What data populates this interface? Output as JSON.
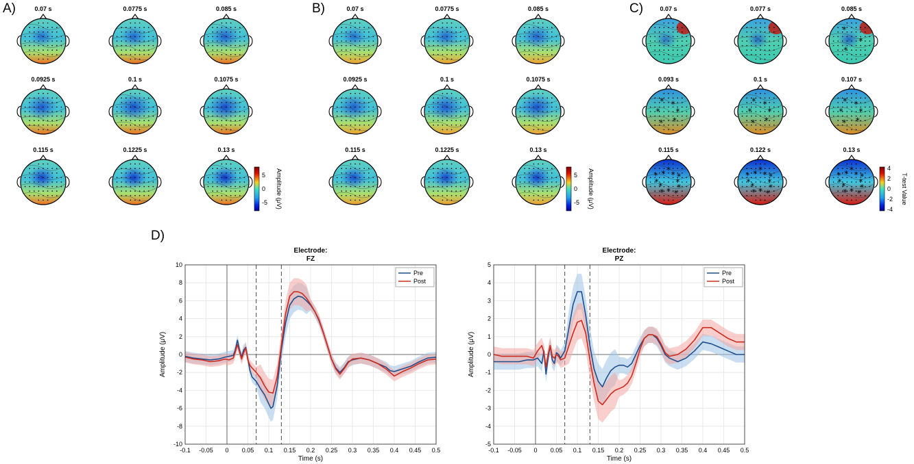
{
  "panel_labels": {
    "a": "A)",
    "b": "B)",
    "c": "C)",
    "d": "D)"
  },
  "topo_panels": [
    {
      "id": "A",
      "titles": [
        "0.07 s",
        "0.0775 s",
        "0.085 s",
        "0.0925 s",
        "0.1 s",
        "0.1075 s",
        "0.115 s",
        "0.1225 s",
        "0.13 s"
      ],
      "colorbar": {
        "label": "Amplitude (μV)",
        "ticks": [
          "5",
          "0",
          "-5"
        ]
      }
    },
    {
      "id": "B",
      "titles": [
        "0.07 s",
        "0.0775 s",
        "0.085 s",
        "0.0925 s",
        "0.1 s",
        "0.1075 s",
        "0.115 s",
        "0.1225 s",
        "0.13 s"
      ],
      "colorbar": {
        "label": "Amplitude (μV)",
        "ticks": [
          "5",
          "0",
          "-5"
        ]
      }
    },
    {
      "id": "C",
      "titles": [
        "0.07 s",
        "0.077 s",
        "0.085 s",
        "0.093 s",
        "0.1 s",
        "0.107 s",
        "0.115 s",
        "0.122 s",
        "0.13 s"
      ],
      "colorbar": {
        "label": "T-test Value",
        "ticks": [
          "4",
          "2",
          "0",
          "-2",
          "-4"
        ]
      }
    }
  ],
  "chart_data": [
    {
      "type": "line",
      "title": "Electrode:",
      "subtitle": "FZ",
      "xlabel": "Time (s)",
      "ylabel": "Amplitude (μV)",
      "xlim": [
        -0.1,
        0.5
      ],
      "ylim": [
        -10,
        10
      ],
      "xticks": [
        "-0.1",
        "-0.05",
        "0",
        "0.05",
        "0.1",
        "0.15",
        "0.2",
        "0.25",
        "0.3",
        "0.35",
        "0.4",
        "0.45",
        "0.5"
      ],
      "yticks": [
        "10",
        "8",
        "6",
        "4",
        "2",
        "0",
        "-2",
        "-4",
        "-6",
        "-8",
        "-10"
      ],
      "grid": true,
      "legend": "top-right",
      "vlines": [
        0.07,
        0.13
      ],
      "series": [
        {
          "name": "Pre",
          "color": "#1f4e8c",
          "band_color": "#9cc3e4",
          "x": [
            -0.1,
            -0.08,
            -0.06,
            -0.04,
            -0.02,
            -0.005,
            0.005,
            0.015,
            0.02,
            0.025,
            0.03,
            0.035,
            0.04,
            0.045,
            0.05,
            0.055,
            0.06,
            0.07,
            0.08,
            0.09,
            0.1,
            0.105,
            0.11,
            0.12,
            0.13,
            0.14,
            0.15,
            0.16,
            0.17,
            0.18,
            0.19,
            0.2,
            0.21,
            0.22,
            0.23,
            0.24,
            0.25,
            0.26,
            0.27,
            0.28,
            0.29,
            0.3,
            0.32,
            0.34,
            0.36,
            0.38,
            0.39,
            0.4,
            0.42,
            0.44,
            0.46,
            0.48,
            0.5
          ],
          "y": [
            -0.2,
            -0.4,
            -0.5,
            -0.6,
            -0.5,
            -0.3,
            -0.2,
            -0.1,
            0.5,
            1.6,
            0.5,
            -0.3,
            0.5,
            0.8,
            -0.5,
            -1.8,
            -2.5,
            -3.0,
            -3.8,
            -4.5,
            -5.5,
            -6.0,
            -5.8,
            -3.5,
            0.5,
            3.5,
            5.5,
            6.2,
            6.5,
            6.4,
            6.0,
            5.5,
            4.8,
            3.8,
            2.5,
            1.0,
            -0.5,
            -1.5,
            -2.0,
            -1.5,
            -0.8,
            -0.6,
            -0.4,
            -0.6,
            -1.0,
            -1.4,
            -1.8,
            -1.9,
            -1.6,
            -1.3,
            -0.8,
            -0.4,
            -0.3
          ]
        },
        {
          "name": "Post",
          "color": "#cc2b1d",
          "band_color": "#f2a7a3",
          "x": [
            -0.1,
            -0.08,
            -0.06,
            -0.04,
            -0.02,
            -0.005,
            0.005,
            0.015,
            0.02,
            0.025,
            0.03,
            0.035,
            0.04,
            0.045,
            0.05,
            0.055,
            0.06,
            0.07,
            0.08,
            0.09,
            0.1,
            0.11,
            0.12,
            0.13,
            0.14,
            0.15,
            0.16,
            0.17,
            0.18,
            0.19,
            0.2,
            0.21,
            0.22,
            0.23,
            0.24,
            0.25,
            0.26,
            0.27,
            0.28,
            0.29,
            0.3,
            0.32,
            0.34,
            0.36,
            0.38,
            0.39,
            0.4,
            0.42,
            0.44,
            0.46,
            0.48,
            0.5
          ],
          "y": [
            -0.3,
            -0.5,
            -0.6,
            -0.8,
            -0.7,
            -0.5,
            -0.6,
            -0.4,
            0.3,
            1.1,
            0.3,
            -0.5,
            0.2,
            0.7,
            -0.6,
            -1.2,
            -1.5,
            -2.0,
            -2.6,
            -3.5,
            -4.2,
            -4.3,
            -2.5,
            1.0,
            4.5,
            6.5,
            7.0,
            7.0,
            6.8,
            6.3,
            5.6,
            4.8,
            3.9,
            2.5,
            1.0,
            -0.5,
            -1.6,
            -2.2,
            -1.6,
            -0.9,
            -0.5,
            -0.4,
            -0.6,
            -1.0,
            -1.6,
            -2.0,
            -2.4,
            -1.9,
            -1.5,
            -1.0,
            -0.6,
            -0.5
          ]
        }
      ]
    },
    {
      "type": "line",
      "title": "Electrode:",
      "subtitle": "PZ",
      "xlabel": "Time (s)",
      "ylabel": "Amplitude (μV)",
      "xlim": [
        -0.1,
        0.5
      ],
      "ylim": [
        -5,
        5
      ],
      "xticks": [
        "-0.1",
        "-0.05",
        "0",
        "0.05",
        "0.1",
        "0.15",
        "0.2",
        "0.25",
        "0.3",
        "0.35",
        "0.4",
        "0.45",
        "0.5"
      ],
      "yticks": [
        "5",
        "4",
        "3",
        "2",
        "1",
        "0",
        "-1",
        "-2",
        "-3",
        "-4",
        "-5"
      ],
      "grid": true,
      "legend": "top-right",
      "vlines": [
        0.07,
        0.13
      ],
      "series": [
        {
          "name": "Pre",
          "color": "#1f4e8c",
          "band_color": "#9cc3e4",
          "x": [
            -0.1,
            -0.08,
            -0.06,
            -0.04,
            -0.02,
            -0.005,
            0.005,
            0.015,
            0.02,
            0.025,
            0.03,
            0.035,
            0.04,
            0.045,
            0.05,
            0.055,
            0.06,
            0.07,
            0.08,
            0.09,
            0.1,
            0.11,
            0.12,
            0.13,
            0.14,
            0.15,
            0.16,
            0.17,
            0.18,
            0.19,
            0.2,
            0.21,
            0.22,
            0.23,
            0.24,
            0.25,
            0.26,
            0.27,
            0.28,
            0.29,
            0.3,
            0.31,
            0.32,
            0.34,
            0.36,
            0.38,
            0.4,
            0.42,
            0.44,
            0.46,
            0.48,
            0.5
          ],
          "y": [
            -0.4,
            -0.4,
            -0.4,
            -0.4,
            -0.3,
            -0.3,
            -0.2,
            -0.5,
            0.2,
            -1.1,
            -0.2,
            0.5,
            -0.3,
            -0.5,
            0.1,
            0.0,
            -0.2,
            0.2,
            1.5,
            2.8,
            3.5,
            3.5,
            2.2,
            0.5,
            -0.8,
            -1.5,
            -1.8,
            -1.3,
            -0.9,
            -0.7,
            -0.6,
            -0.6,
            -0.7,
            -0.5,
            0.0,
            0.5,
            0.9,
            1.1,
            1.1,
            0.9,
            0.5,
            0.0,
            -0.2,
            -0.4,
            -0.2,
            0.2,
            0.7,
            0.6,
            0.4,
            0.2,
            0.0,
            0.0
          ]
        },
        {
          "name": "Post",
          "color": "#cc2b1d",
          "band_color": "#f2a7a3",
          "x": [
            -0.1,
            -0.08,
            -0.06,
            -0.04,
            -0.02,
            -0.005,
            0.005,
            0.015,
            0.02,
            0.025,
            0.03,
            0.035,
            0.04,
            0.045,
            0.05,
            0.055,
            0.06,
            0.07,
            0.08,
            0.09,
            0.1,
            0.11,
            0.12,
            0.13,
            0.14,
            0.15,
            0.16,
            0.17,
            0.18,
            0.19,
            0.2,
            0.21,
            0.22,
            0.23,
            0.24,
            0.25,
            0.26,
            0.27,
            0.28,
            0.29,
            0.3,
            0.31,
            0.32,
            0.34,
            0.36,
            0.38,
            0.4,
            0.42,
            0.44,
            0.46,
            0.48,
            0.5
          ],
          "y": [
            0.0,
            -0.1,
            -0.1,
            -0.1,
            -0.1,
            -0.2,
            0.2,
            0.5,
            0.1,
            -0.7,
            0.0,
            0.5,
            -0.1,
            -0.2,
            0.0,
            -0.1,
            -0.3,
            -0.2,
            0.5,
            1.2,
            1.8,
            1.9,
            1.2,
            -0.3,
            -1.6,
            -2.6,
            -2.8,
            -2.5,
            -2.2,
            -2.0,
            -1.9,
            -1.8,
            -1.6,
            -1.2,
            -0.5,
            0.3,
            0.9,
            1.1,
            1.1,
            1.0,
            0.6,
            0.1,
            -0.1,
            0.0,
            0.3,
            0.8,
            1.5,
            1.5,
            1.2,
            0.9,
            0.7,
            0.7
          ]
        }
      ]
    }
  ]
}
